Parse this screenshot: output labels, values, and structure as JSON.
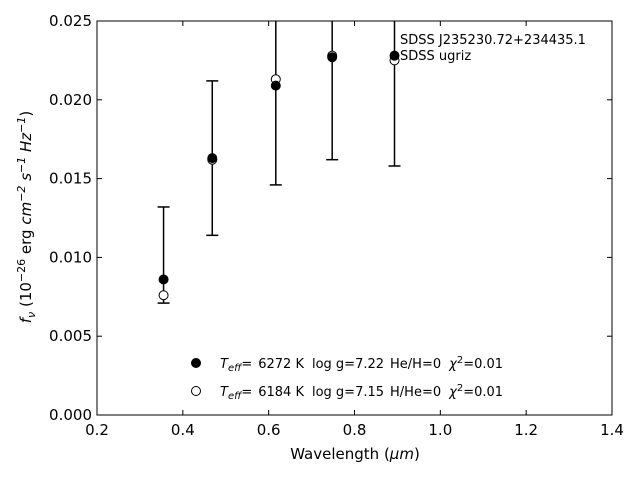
{
  "chart_data": {
    "type": "scatter",
    "xlabel_main": "Wavelength (",
    "xlabel_unit": "μm",
    "xlabel_close": ")",
    "ylabel_f": "f",
    "ylabel_sub": "ν",
    "ylabel_open": " (10",
    "ylabel_exp1": "−26",
    "ylabel_erg": " erg ",
    "ylabel_cm": "cm",
    "ylabel_exp2": "−2",
    "ylabel_s": " s",
    "ylabel_exp3": "−1",
    "ylabel_hz": " Hz",
    "ylabel_exp4": "−1",
    "ylabel_close": ")",
    "xlim": [
      0.2,
      1.4
    ],
    "ylim": [
      0.0,
      0.025
    ],
    "x_ticks": [
      0.2,
      0.4,
      0.6,
      0.8,
      1.0,
      1.2,
      1.4
    ],
    "x_tick_labels": [
      "0.2",
      "0.4",
      "0.6",
      "0.8",
      "1.0",
      "1.2",
      "1.4"
    ],
    "y_ticks": [
      0.0,
      0.005,
      0.01,
      0.015,
      0.02,
      0.025
    ],
    "y_tick_labels": [
      "0.000",
      "0.005",
      "0.010",
      "0.015",
      "0.020",
      "0.025"
    ],
    "annotation": [
      "SDSS J235230.72+234435.1",
      "SDSS ugriz"
    ],
    "observed": {
      "x": [
        0.3551,
        0.4686,
        0.6166,
        0.748,
        0.8932
      ],
      "y": [
        0.0086,
        0.0163,
        0.0209,
        0.0227,
        0.0228
      ],
      "err_low": [
        0.0071,
        0.0114,
        0.0146,
        0.0162,
        0.0158
      ],
      "err_high": [
        0.0132,
        0.0212,
        0.025,
        0.025,
        0.025
      ]
    },
    "model": {
      "x": [
        0.3551,
        0.4686,
        0.6166,
        0.748,
        0.8932
      ],
      "y": [
        0.0076,
        0.0162,
        0.0213,
        0.0228,
        0.0225
      ]
    },
    "series": [
      {
        "marker": "filled",
        "teff": "6272 K",
        "logg": "log g=7.22",
        "comp": "He/H=0",
        "chi2": "=0.01"
      },
      {
        "marker": "open",
        "teff": "6184 K",
        "logg": "log g=7.15",
        "comp": "H/He=0",
        "chi2": "=0.01"
      }
    ],
    "legend_teff_prefix": "T",
    "legend_teff_sub": "eff",
    "legend_eq": "=",
    "legend_chi": "χ",
    "legend_chi_exp": "2",
    "legend_position": "lower-center",
    "grid": false
  }
}
